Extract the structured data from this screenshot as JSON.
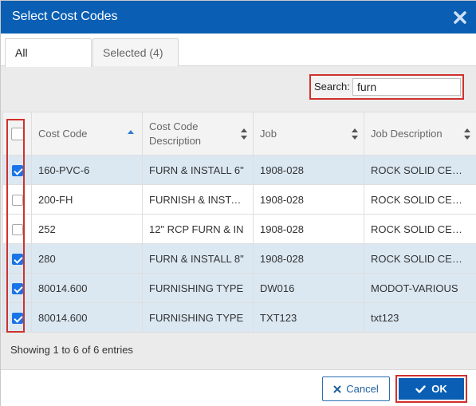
{
  "dialog": {
    "title": "Select Cost Codes",
    "header_color": "#0a5fb4",
    "close_icon": "close-icon"
  },
  "tabs": [
    {
      "label": "All",
      "active": true
    },
    {
      "label": "Selected (4)",
      "active": false
    }
  ],
  "search": {
    "label": "Search:",
    "value": "furn"
  },
  "table": {
    "columns": [
      {
        "label": "",
        "sort": "none"
      },
      {
        "label": "Cost Code",
        "sort": "ascending"
      },
      {
        "label": "Cost Code Description",
        "sort": "none"
      },
      {
        "label": "Job",
        "sort": "none"
      },
      {
        "label": "Job Description",
        "sort": "none"
      }
    ],
    "rows": [
      {
        "checked": true,
        "cost_code": "160-PVC-6",
        "description": "FURN & INSTALL 6\"",
        "job": "1908-028",
        "job_description": "ROCK SOLID CENTRAL"
      },
      {
        "checked": false,
        "cost_code": "200-FH",
        "description": "FURNISH & INSTALL",
        "job": "1908-028",
        "job_description": "ROCK SOLID CENTRAL"
      },
      {
        "checked": false,
        "cost_code": "252",
        "description": "12\" RCP FURN & IN",
        "job": "1908-028",
        "job_description": "ROCK SOLID CENTRAL"
      },
      {
        "checked": true,
        "cost_code": "280",
        "description": "FURN & INSTALL 8\"",
        "job": "1908-028",
        "job_description": "ROCK SOLID CENTRAL"
      },
      {
        "checked": true,
        "cost_code": "80014.600",
        "description": "FURNISHING TYPE",
        "job": "DW016",
        "job_description": "MODOT-VARIOUS"
      },
      {
        "checked": true,
        "cost_code": "80014.600",
        "description": "FURNISHING TYPE",
        "job": "TXT123",
        "job_description": "txt123"
      }
    ],
    "checked_row_color": "#dbe8f2"
  },
  "info_text": "Showing 1 to 6 of 6 entries",
  "footer": {
    "cancel_label": "Cancel",
    "ok_label": "OK",
    "cancel_icon": "x-icon",
    "ok_icon": "checkmark-icon"
  },
  "highlight_color": "#d0312d"
}
